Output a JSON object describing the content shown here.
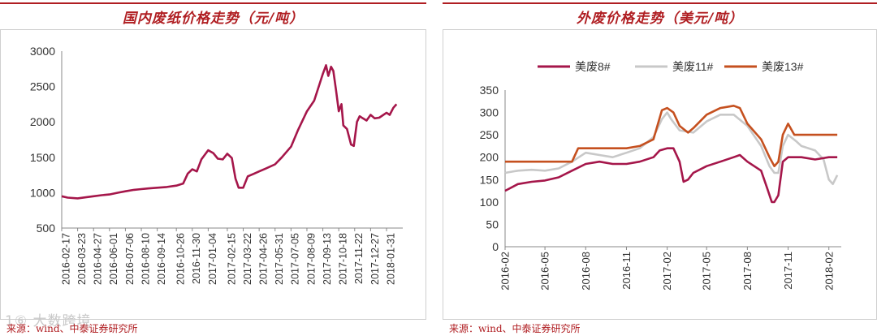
{
  "left": {
    "title": "国内废纸价格走势（元/吨）",
    "source": "来源：wind、中泰证券研究所",
    "watermark": "1⑥ 大数跨境",
    "colors": {
      "line": "#a5164a",
      "accent": "#b01e22"
    },
    "chart_data": {
      "type": "line",
      "title": "国内废纸价格走势（元/吨）",
      "ylim": [
        500,
        3000
      ],
      "yticks": [
        500,
        1000,
        1500,
        2000,
        2500,
        3000
      ],
      "xticks": [
        "2016-02-17",
        "2016-03-23",
        "2016-04-27",
        "2016-06-01",
        "2016-07-06",
        "2016-08-10",
        "2016-09-14",
        "2016-10-26",
        "2016-11-30",
        "2017-01-04",
        "2017-02-15",
        "2017-03-22",
        "2017-04-26",
        "2017-05-31",
        "2017-07-05",
        "2017-08-09",
        "2017-09-13",
        "2017-10-18",
        "2017-11-22",
        "2017-12-27",
        "2018-01-31"
      ],
      "grid": false,
      "legend": "none",
      "series": [
        {
          "name": "",
          "points": [
            [
              "2016-02-17",
              950
            ],
            [
              "2016-03-01",
              930
            ],
            [
              "2016-03-23",
              920
            ],
            [
              "2016-04-10",
              935
            ],
            [
              "2016-04-27",
              950
            ],
            [
              "2016-05-15",
              965
            ],
            [
              "2016-06-01",
              975
            ],
            [
              "2016-06-20",
              1000
            ],
            [
              "2016-07-06",
              1020
            ],
            [
              "2016-07-25",
              1040
            ],
            [
              "2016-08-10",
              1050
            ],
            [
              "2016-08-25",
              1060
            ],
            [
              "2016-09-14",
              1070
            ],
            [
              "2016-10-05",
              1080
            ],
            [
              "2016-10-26",
              1100
            ],
            [
              "2016-11-10",
              1130
            ],
            [
              "2016-11-20",
              1270
            ],
            [
              "2016-11-30",
              1330
            ],
            [
              "2016-12-10",
              1300
            ],
            [
              "2016-12-20",
              1470
            ],
            [
              "2017-01-04",
              1600
            ],
            [
              "2017-01-15",
              1560
            ],
            [
              "2017-01-25",
              1480
            ],
            [
              "2017-02-05",
              1470
            ],
            [
              "2017-02-15",
              1550
            ],
            [
              "2017-02-25",
              1490
            ],
            [
              "2017-03-05",
              1200
            ],
            [
              "2017-03-12",
              1070
            ],
            [
              "2017-03-22",
              1070
            ],
            [
              "2017-04-01",
              1230
            ],
            [
              "2017-04-15",
              1270
            ],
            [
              "2017-04-26",
              1300
            ],
            [
              "2017-05-10",
              1340
            ],
            [
              "2017-05-31",
              1400
            ],
            [
              "2017-06-15",
              1500
            ],
            [
              "2017-07-05",
              1650
            ],
            [
              "2017-07-20",
              1880
            ],
            [
              "2017-08-09",
              2150
            ],
            [
              "2017-08-25",
              2300
            ],
            [
              "2017-09-05",
              2520
            ],
            [
              "2017-09-13",
              2680
            ],
            [
              "2017-09-20",
              2800
            ],
            [
              "2017-09-25",
              2650
            ],
            [
              "2017-10-01",
              2780
            ],
            [
              "2017-10-06",
              2720
            ],
            [
              "2017-10-12",
              2450
            ],
            [
              "2017-10-18",
              2150
            ],
            [
              "2017-10-24",
              2250
            ],
            [
              "2017-10-28",
              1950
            ],
            [
              "2017-11-05",
              1900
            ],
            [
              "2017-11-14",
              1680
            ],
            [
              "2017-11-20",
              1660
            ],
            [
              "2017-11-27",
              2000
            ],
            [
              "2017-12-03",
              2080
            ],
            [
              "2017-12-10",
              2050
            ],
            [
              "2017-12-18",
              2020
            ],
            [
              "2017-12-27",
              2100
            ],
            [
              "2018-01-05",
              2050
            ],
            [
              "2018-01-15",
              2060
            ],
            [
              "2018-01-31",
              2130
            ],
            [
              "2018-02-07",
              2100
            ],
            [
              "2018-02-15",
              2200
            ],
            [
              "2018-02-22",
              2250
            ]
          ]
        }
      ]
    }
  },
  "right": {
    "title": "外废价格走势（美元/吨）",
    "source": "来源：wind、中泰证券研究所",
    "colors": {
      "usw8": "#a5164a",
      "usw11": "#c8c8c8",
      "usw13": "#c5501f"
    },
    "chart_data": {
      "type": "line",
      "title": "外废价格走势（美元/吨）",
      "ylim": [
        0,
        350
      ],
      "yticks": [
        0,
        50,
        100,
        150,
        200,
        250,
        300,
        350
      ],
      "xticks": [
        "2016-02",
        "2016-05",
        "2016-08",
        "2016-11",
        "2017-02",
        "2017-05",
        "2017-08",
        "2017-11",
        "2018-02"
      ],
      "grid": false,
      "legend": "top",
      "series": [
        {
          "name": "美废8#",
          "color": "#a5164a",
          "points": [
            [
              "2016-02",
              125
            ],
            [
              "2016-03",
              140
            ],
            [
              "2016-04",
              145
            ],
            [
              "2016-05",
              148
            ],
            [
              "2016-06",
              155
            ],
            [
              "2016-07",
              170
            ],
            [
              "2016-08",
              185
            ],
            [
              "2016-09",
              190
            ],
            [
              "2016-10",
              185
            ],
            [
              "2016-11",
              185
            ],
            [
              "2016-12",
              190
            ],
            [
              "2017-01",
              200
            ],
            [
              "2017-01-15",
              215
            ],
            [
              "2017-02",
              220
            ],
            [
              "2017-02-15",
              220
            ],
            [
              "2017-03",
              190
            ],
            [
              "2017-03-10",
              145
            ],
            [
              "2017-03-20",
              150
            ],
            [
              "2017-04",
              165
            ],
            [
              "2017-05",
              180
            ],
            [
              "2017-06",
              190
            ],
            [
              "2017-07",
              200
            ],
            [
              "2017-07-15",
              205
            ],
            [
              "2017-08",
              190
            ],
            [
              "2017-09",
              170
            ],
            [
              "2017-09-15",
              130
            ],
            [
              "2017-09-25",
              100
            ],
            [
              "2017-10",
              100
            ],
            [
              "2017-10-10",
              115
            ],
            [
              "2017-10-20",
              190
            ],
            [
              "2017-11",
              200
            ],
            [
              "2017-12",
              200
            ],
            [
              "2018-01",
              195
            ],
            [
              "2018-02",
              200
            ],
            [
              "2018-02-20",
              200
            ]
          ]
        },
        {
          "name": "美废11#",
          "color": "#c8c8c8",
          "points": [
            [
              "2016-02",
              165
            ],
            [
              "2016-03",
              170
            ],
            [
              "2016-04",
              172
            ],
            [
              "2016-05",
              170
            ],
            [
              "2016-06",
              175
            ],
            [
              "2016-07",
              190
            ],
            [
              "2016-08",
              210
            ],
            [
              "2016-09",
              205
            ],
            [
              "2016-10",
              200
            ],
            [
              "2016-11",
              210
            ],
            [
              "2016-12",
              220
            ],
            [
              "2017-01",
              245
            ],
            [
              "2017-01-20",
              285
            ],
            [
              "2017-02",
              300
            ],
            [
              "2017-02-10",
              285
            ],
            [
              "2017-03",
              260
            ],
            [
              "2017-04",
              255
            ],
            [
              "2017-05",
              280
            ],
            [
              "2017-06",
              295
            ],
            [
              "2017-07",
              295
            ],
            [
              "2017-08",
              270
            ],
            [
              "2017-09",
              225
            ],
            [
              "2017-09-20",
              180
            ],
            [
              "2017-10",
              165
            ],
            [
              "2017-10-10",
              165
            ],
            [
              "2017-10-20",
              225
            ],
            [
              "2017-11",
              250
            ],
            [
              "2017-11-20",
              235
            ],
            [
              "2017-12",
              225
            ],
            [
              "2018-01",
              215
            ],
            [
              "2018-01-20",
              195
            ],
            [
              "2018-02",
              150
            ],
            [
              "2018-02-10",
              140
            ],
            [
              "2018-02-20",
              160
            ]
          ]
        },
        {
          "name": "美废13#",
          "color": "#c5501f",
          "points": [
            [
              "2016-02",
              190
            ],
            [
              "2016-03",
              190
            ],
            [
              "2016-04",
              190
            ],
            [
              "2016-05",
              190
            ],
            [
              "2016-06",
              190
            ],
            [
              "2016-07",
              190
            ],
            [
              "2016-07-15",
              220
            ],
            [
              "2016-08",
              220
            ],
            [
              "2016-09",
              220
            ],
            [
              "2016-10",
              220
            ],
            [
              "2016-11",
              220
            ],
            [
              "2016-12",
              225
            ],
            [
              "2017-01",
              240
            ],
            [
              "2017-01-20",
              305
            ],
            [
              "2017-02",
              310
            ],
            [
              "2017-02-15",
              300
            ],
            [
              "2017-03",
              270
            ],
            [
              "2017-03-20",
              255
            ],
            [
              "2017-04",
              265
            ],
            [
              "2017-05",
              295
            ],
            [
              "2017-06",
              310
            ],
            [
              "2017-07",
              315
            ],
            [
              "2017-07-15",
              310
            ],
            [
              "2017-08",
              275
            ],
            [
              "2017-09",
              240
            ],
            [
              "2017-09-20",
              200
            ],
            [
              "2017-10",
              180
            ],
            [
              "2017-10-10",
              190
            ],
            [
              "2017-10-20",
              250
            ],
            [
              "2017-11",
              275
            ],
            [
              "2017-11-15",
              250
            ],
            [
              "2017-12",
              250
            ],
            [
              "2018-01",
              250
            ],
            [
              "2018-02",
              250
            ],
            [
              "2018-02-20",
              250
            ]
          ]
        }
      ]
    }
  }
}
